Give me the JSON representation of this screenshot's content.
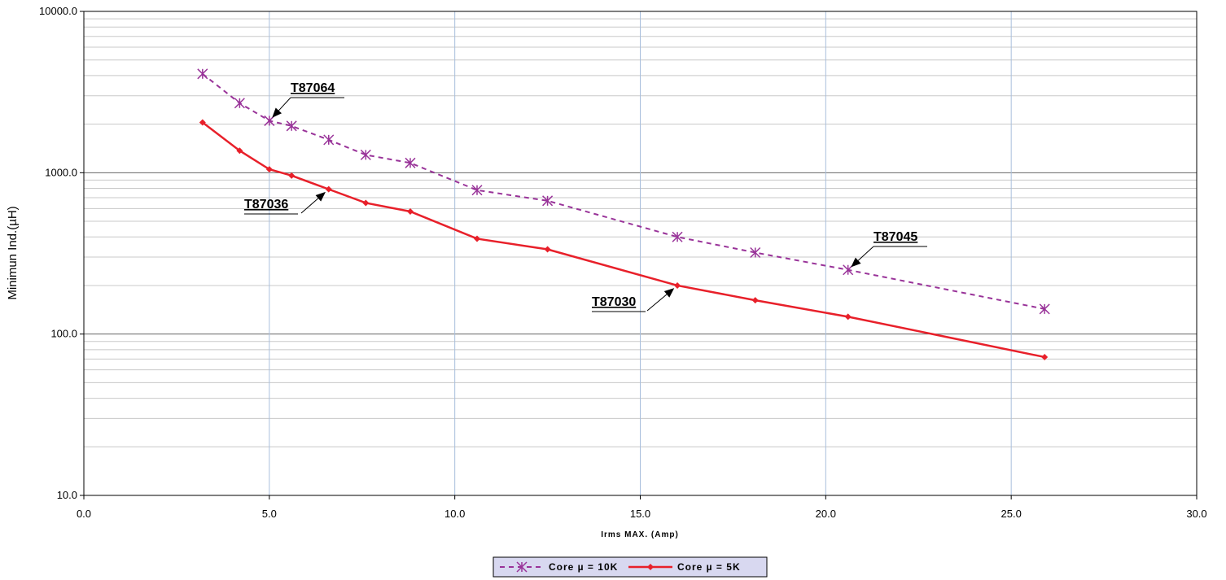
{
  "chart_data": {
    "type": "line",
    "title": "",
    "xlabel": "Irms MAX. (Amp)",
    "ylabel": "Minimun Ind.(µH)",
    "xlim": [
      0,
      30
    ],
    "ylim": [
      10,
      10000
    ],
    "yscale": "log",
    "grid": true,
    "legend_position": "bottom-center",
    "x_ticks": [
      "0.0",
      "5.0",
      "10.0",
      "15.0",
      "20.0",
      "25.0",
      "30.0"
    ],
    "y_ticks": [
      "10.0",
      "100.0",
      "1000.0",
      "10000.0"
    ],
    "series": [
      {
        "name": "Core µ = 10K",
        "color": "#993399",
        "line": "dashed",
        "marker": "asterisk",
        "x": [
          3.2,
          4.2,
          5.0,
          5.6,
          6.6,
          7.6,
          8.8,
          10.6,
          12.5,
          16.0,
          18.1,
          20.6,
          25.9
        ],
        "y": [
          4100,
          2700,
          2100,
          1950,
          1600,
          1290,
          1150,
          780,
          670,
          400,
          320,
          250,
          143
        ]
      },
      {
        "name": "Core µ = 5K",
        "color": "#e8202a",
        "line": "solid",
        "marker": "diamond",
        "x": [
          3.2,
          4.2,
          5.0,
          5.6,
          6.6,
          7.6,
          8.8,
          10.6,
          12.5,
          16.0,
          18.1,
          20.6,
          25.9
        ],
        "y": [
          2050,
          1370,
          1050,
          960,
          790,
          650,
          575,
          390,
          335,
          200,
          162,
          128,
          72
        ]
      }
    ],
    "annotations": [
      {
        "text": "T87064",
        "series": 0,
        "point_index": 2
      },
      {
        "text": "T87036",
        "series": 1,
        "point_index": 4
      },
      {
        "text": "T87045",
        "series": 0,
        "point_index": 11
      },
      {
        "text": "T87030",
        "series": 1,
        "point_index": 9
      }
    ]
  }
}
